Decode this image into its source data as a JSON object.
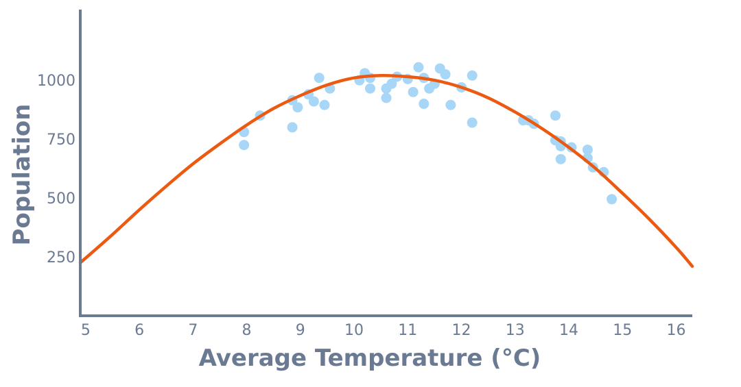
{
  "chart_data": {
    "type": "scatter",
    "title": "",
    "xlabel": "Average Temperature (°C)",
    "ylabel": "Population",
    "xlim": [
      4.9,
      16.3
    ],
    "ylim": [
      0,
      1300
    ],
    "x_ticks": [
      5,
      6,
      7,
      8,
      9,
      10,
      11,
      12,
      13,
      14,
      15,
      16
    ],
    "y_ticks": [
      250,
      500,
      750,
      1000
    ],
    "grid": false,
    "legend": "none",
    "colors": {
      "points": "#a7d6f7",
      "curve": "#ec5a12",
      "axis": "#6b7a93"
    },
    "points": {
      "x": [
        7.95,
        7.95,
        8.25,
        8.85,
        8.85,
        8.95,
        9.15,
        9.25,
        9.35,
        9.45,
        9.55,
        10.1,
        10.2,
        10.3,
        10.3,
        10.6,
        10.6,
        10.7,
        10.8,
        11.0,
        11.1,
        11.2,
        11.3,
        11.3,
        11.4,
        11.5,
        11.6,
        11.7,
        11.8,
        12.0,
        12.2,
        12.2,
        13.15,
        13.25,
        13.35,
        13.75,
        13.75,
        13.85,
        13.85,
        13.85,
        14.05,
        14.35,
        14.35,
        14.45,
        14.65,
        14.8
      ],
      "y": [
        780,
        725,
        850,
        800,
        915,
        885,
        940,
        910,
        1010,
        895,
        965,
        1000,
        1030,
        965,
        1010,
        965,
        925,
        985,
        1015,
        1005,
        950,
        1055,
        900,
        1010,
        965,
        985,
        1050,
        1025,
        895,
        970,
        1020,
        820,
        830,
        830,
        815,
        850,
        745,
        740,
        720,
        665,
        715,
        705,
        670,
        630,
        610,
        495
      ]
    },
    "trend_series": {
      "name": "",
      "x": [
        4.9,
        5.5,
        6.0,
        6.5,
        7.0,
        7.5,
        8.0,
        8.5,
        9.0,
        9.5,
        10.0,
        10.5,
        11.0,
        11.5,
        12.0,
        12.5,
        13.0,
        13.5,
        14.0,
        14.5,
        15.0,
        15.5,
        16.0,
        16.3
      ],
      "y": [
        225,
        345,
        450,
        550,
        645,
        730,
        810,
        880,
        935,
        980,
        1010,
        1020,
        1015,
        1000,
        970,
        925,
        865,
        795,
        715,
        625,
        520,
        410,
        290,
        210
      ]
    }
  }
}
